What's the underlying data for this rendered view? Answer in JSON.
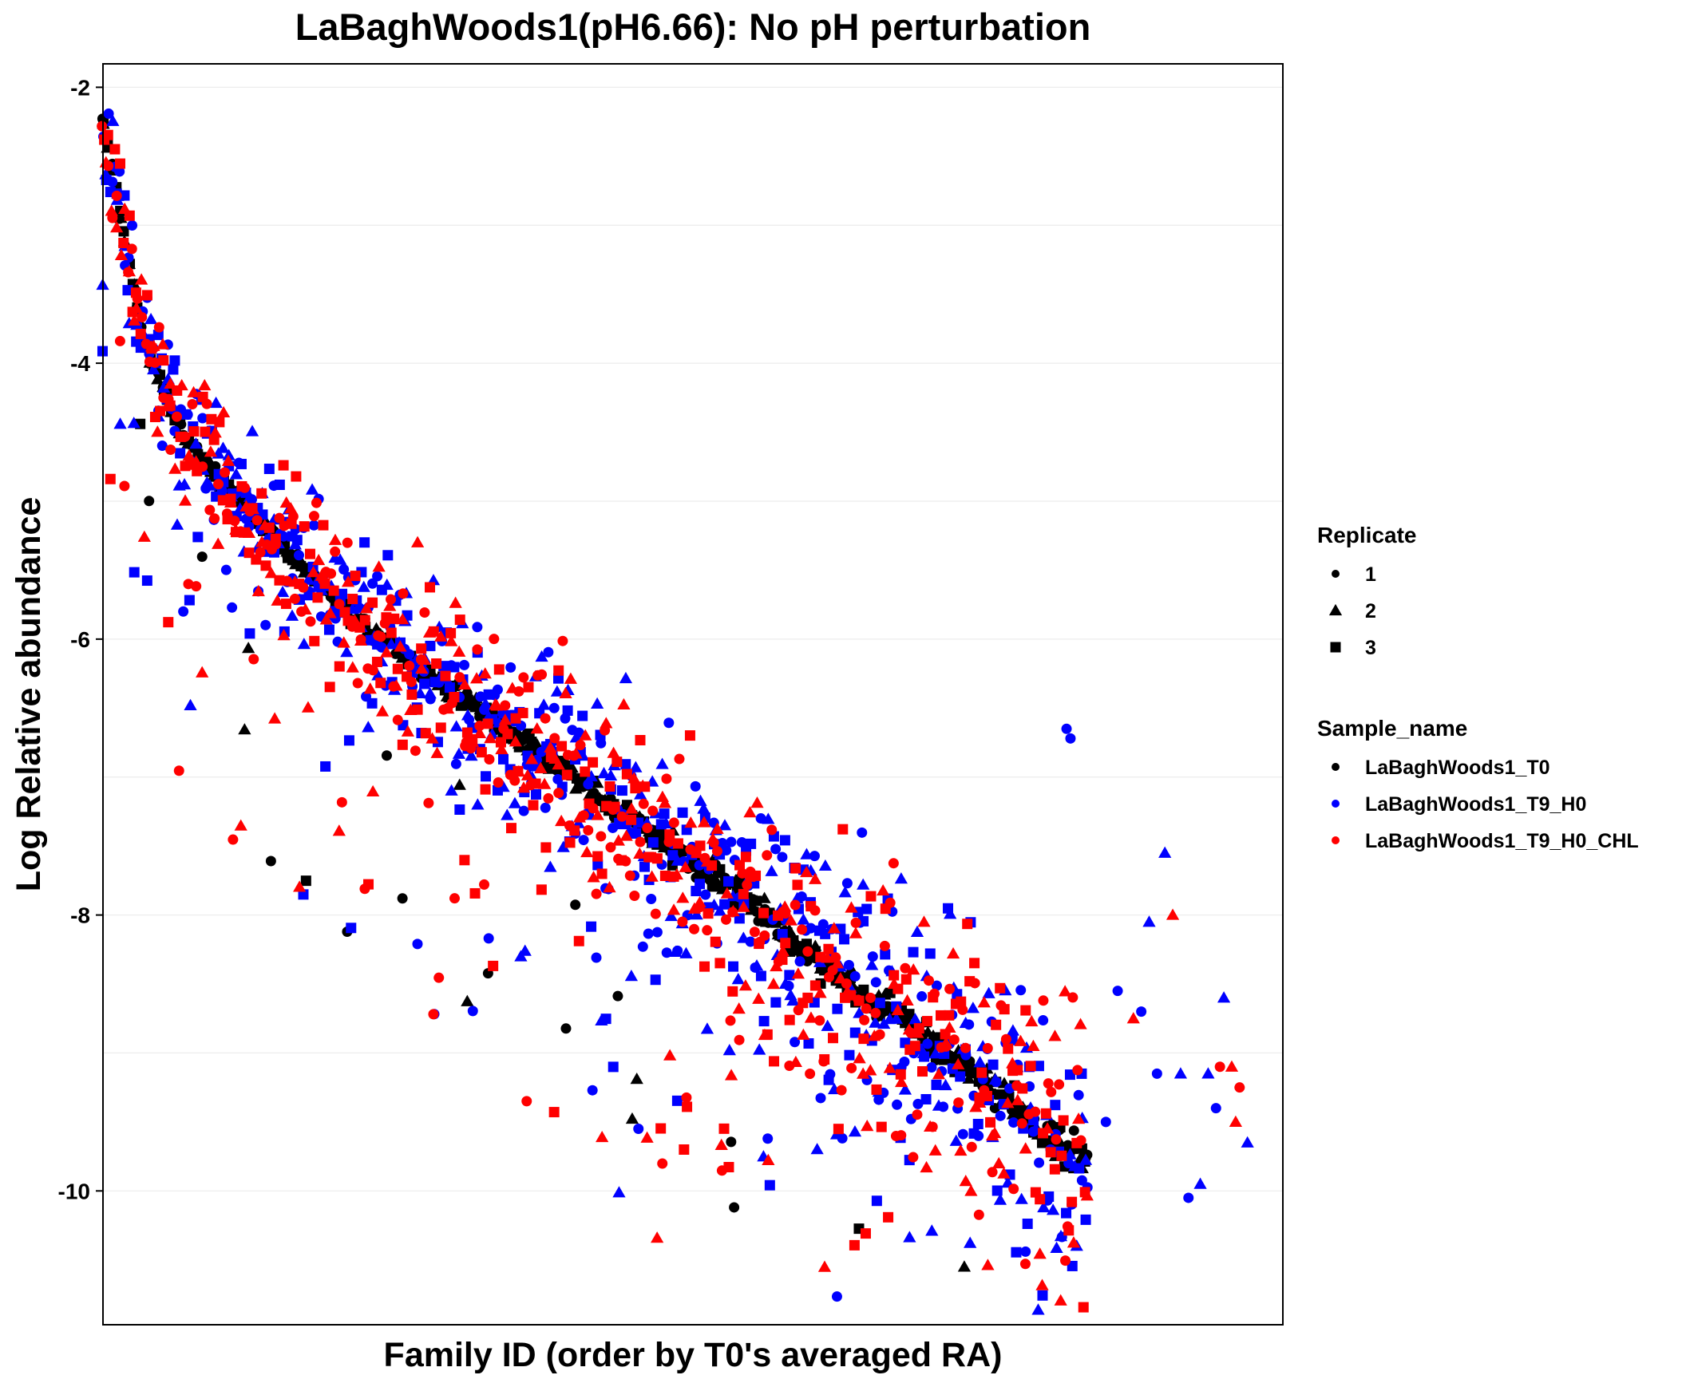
{
  "chart_data": {
    "type": "scatter",
    "title": "LaBaghWoods1(pH6.66): No pH perturbation",
    "xlabel": "Family ID (order by T0's averaged RA)",
    "ylabel": "Log Relative abundance",
    "xlim": [
      0,
      300
    ],
    "ylim": [
      -10.97,
      -1.83
    ],
    "y_ticks": [
      -2,
      -4,
      -6,
      -8,
      -10
    ],
    "y_tick_labels": [
      "-2",
      "-4",
      "-6",
      "-8",
      "-10"
    ],
    "x_ticks_shown": false,
    "grid": "horizontal major and minor lines, very light",
    "legend_position": "right",
    "legends": [
      {
        "title": "Replicate",
        "items": [
          {
            "label": "1",
            "shape": "circle"
          },
          {
            "label": "2",
            "shape": "triangle"
          },
          {
            "label": "3",
            "shape": "square"
          }
        ]
      },
      {
        "title": "Sample_name",
        "items": [
          {
            "label": "LaBaghWoods1_T0",
            "color": "#000000"
          },
          {
            "label": "LaBaghWoods1_T9_H0",
            "color": "#0000ff"
          },
          {
            "label": "LaBaghWoods1_T9_H0_CHL",
            "color": "#ff0000"
          }
        ]
      }
    ],
    "series": [
      {
        "name": "LaBaghWoods1_T0",
        "color": "#000000",
        "spread": 0.06,
        "outlier_rate": 0.03
      },
      {
        "name": "LaBaghWoods1_T9_H0",
        "color": "#0000ff",
        "spread": 0.5,
        "outlier_rate": 0.1
      },
      {
        "name": "LaBaghWoods1_T9_H0_CHL",
        "color": "#ff0000",
        "spread": 0.5,
        "outlier_rate": 0.1
      }
    ],
    "trend": {
      "x": [
        0,
        3,
        6,
        10,
        20,
        30,
        45,
        60,
        80,
        100,
        120,
        140,
        160,
        180,
        200,
        220,
        240,
        250
      ],
      "y": [
        -2.25,
        -2.7,
        -3.2,
        -3.8,
        -4.5,
        -4.85,
        -5.3,
        -5.75,
        -6.2,
        -6.6,
        -7.0,
        -7.4,
        -7.8,
        -8.3,
        -8.7,
        -9.1,
        -9.6,
        -9.8
      ]
    },
    "families_shown": 230,
    "tail_points": [
      {
        "x": 255,
        "y": -9.5,
        "series": 1
      },
      {
        "x": 258,
        "y": -8.55,
        "series": 1
      },
      {
        "x": 262,
        "y": -8.75,
        "series": 2
      },
      {
        "x": 264,
        "y": -8.7,
        "series": 1
      },
      {
        "x": 266,
        "y": -8.05,
        "series": 1
      },
      {
        "x": 268,
        "y": -9.15,
        "series": 1
      },
      {
        "x": 270,
        "y": -7.55,
        "series": 1
      },
      {
        "x": 272,
        "y": -8.0,
        "series": 2
      },
      {
        "x": 274,
        "y": -9.15,
        "series": 1
      },
      {
        "x": 276,
        "y": -10.05,
        "series": 1
      },
      {
        "x": 279,
        "y": -9.95,
        "series": 1
      },
      {
        "x": 281,
        "y": -9.15,
        "series": 1
      },
      {
        "x": 283,
        "y": -9.4,
        "series": 1
      },
      {
        "x": 284,
        "y": -9.1,
        "series": 2
      },
      {
        "x": 285,
        "y": -8.6,
        "series": 1
      },
      {
        "x": 287,
        "y": -9.1,
        "series": 2
      },
      {
        "x": 288,
        "y": -9.5,
        "series": 2
      },
      {
        "x": 289,
        "y": -9.25,
        "series": 2
      },
      {
        "x": 291,
        "y": -9.65,
        "series": 1
      },
      {
        "x": 245,
        "y": -6.65,
        "series": 1
      },
      {
        "x": 246,
        "y": -6.72,
        "series": 1
      },
      {
        "x": 219,
        "y": -10.55,
        "series": 0
      }
    ]
  }
}
